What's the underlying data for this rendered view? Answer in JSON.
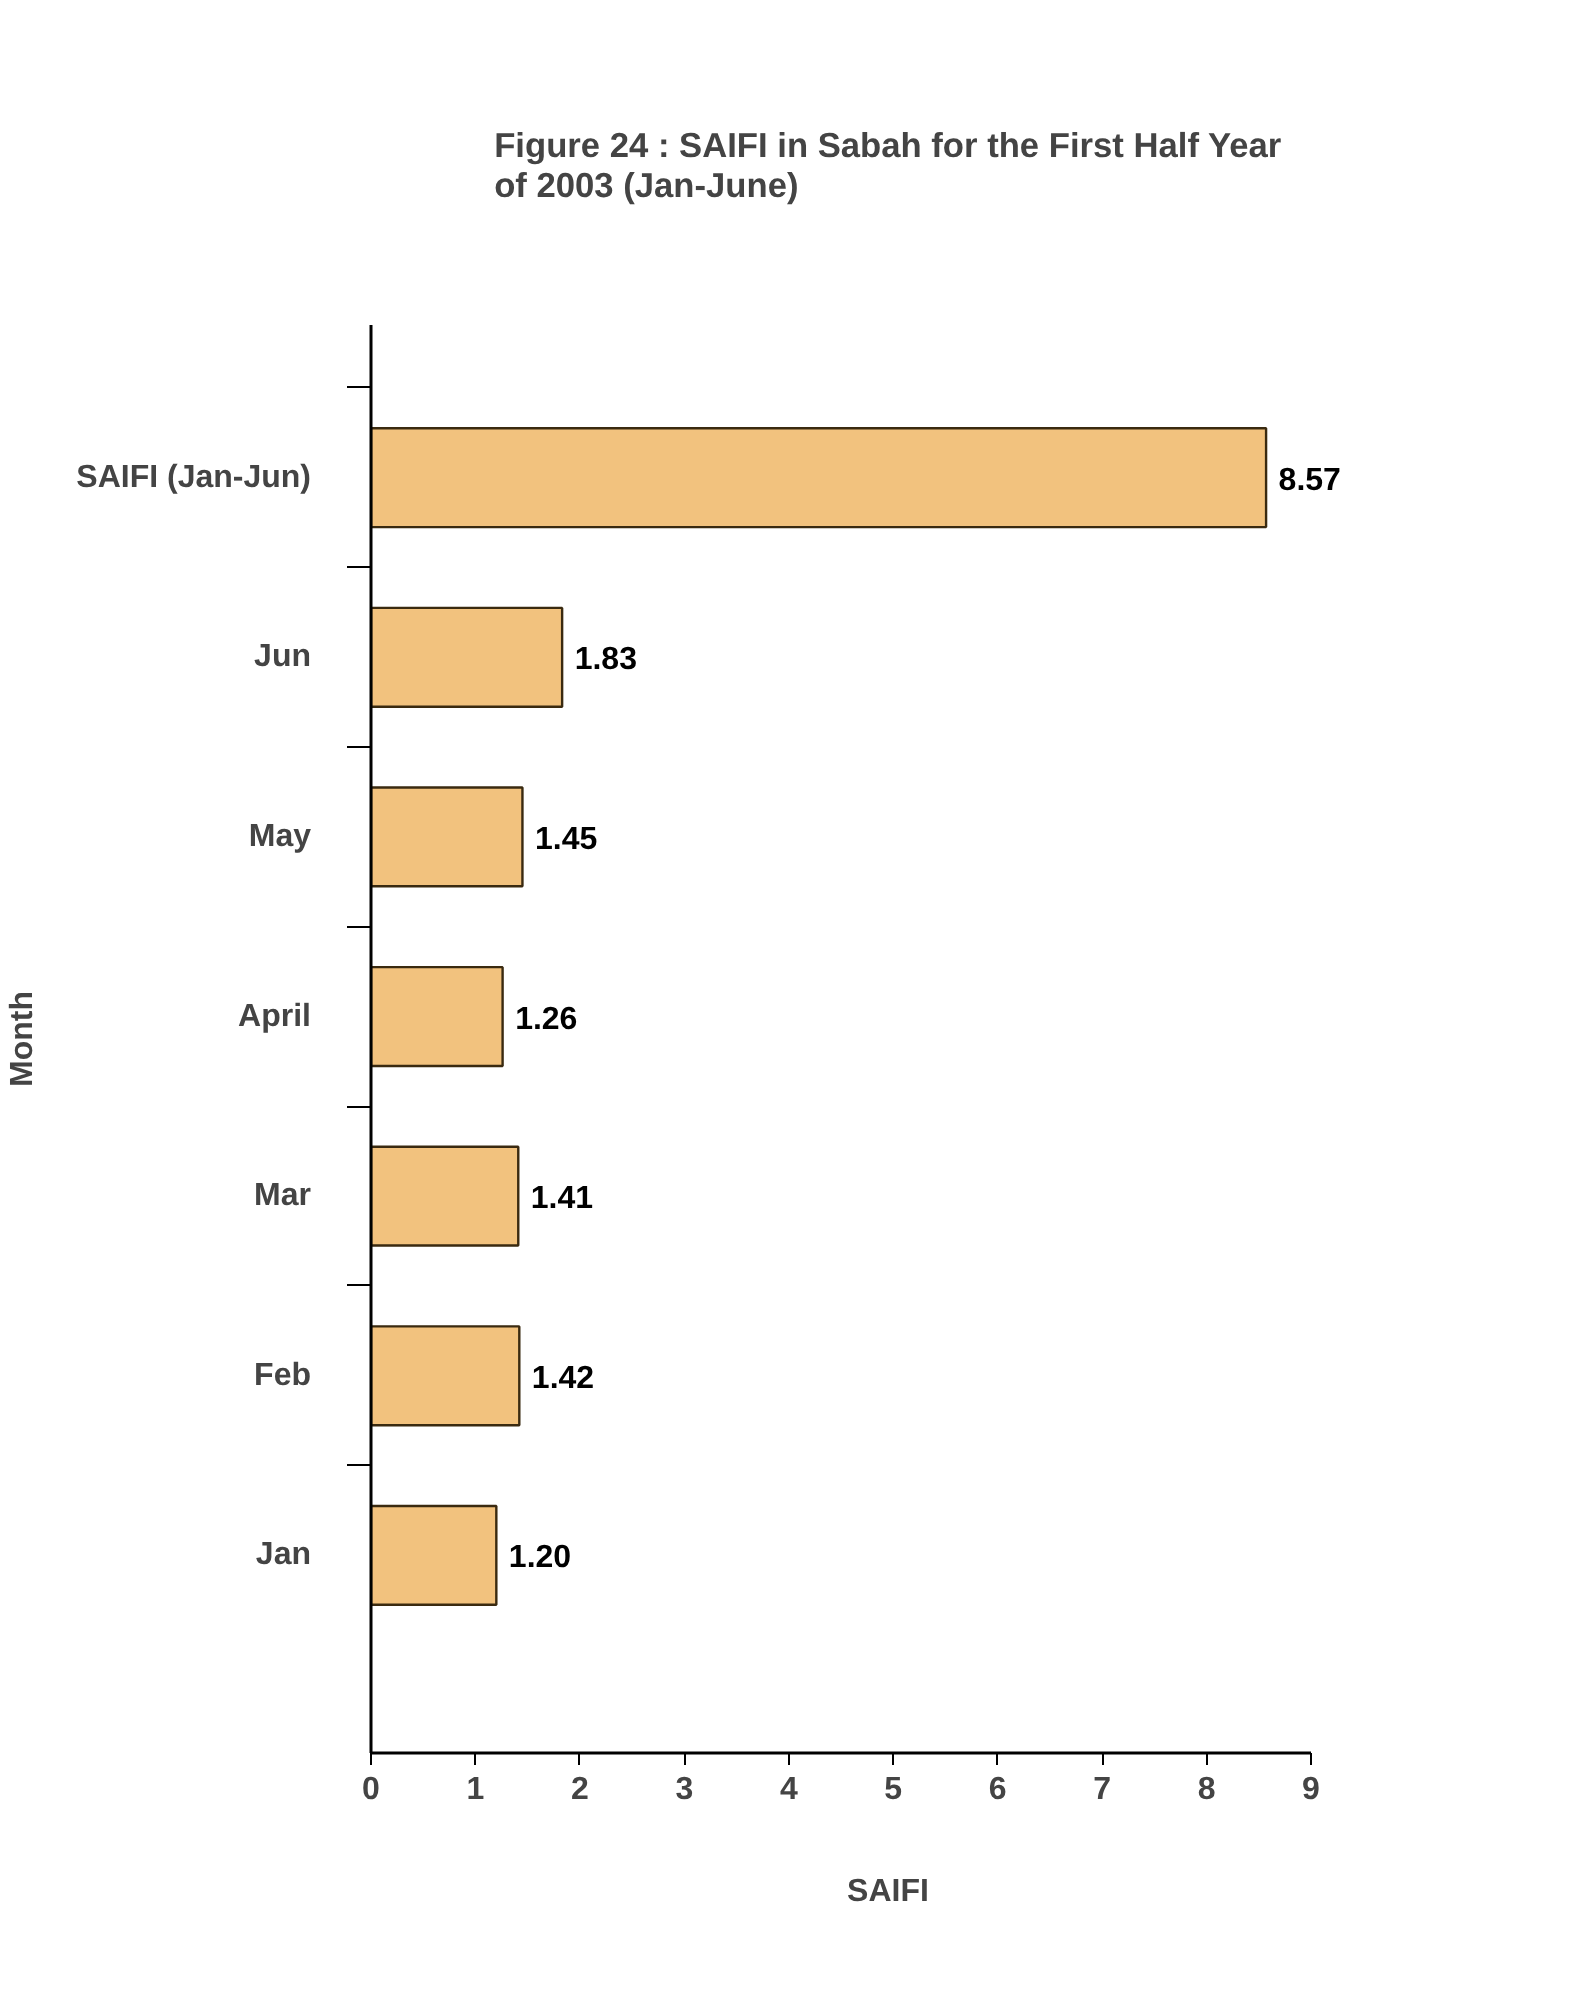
{
  "chart_data": {
    "type": "bar",
    "orientation": "horizontal",
    "title": "Figure 24 : SAIFI in Sabah for the First Half Year of 2003 (Jan-June)",
    "categories": [
      "SAIFI (Jan-Jun)",
      "Jun",
      "May",
      "April",
      "Mar",
      "Feb",
      "Jan"
    ],
    "values": [
      8.57,
      1.83,
      1.45,
      1.26,
      1.41,
      1.42,
      1.2
    ],
    "value_labels": [
      "8.57",
      "1.83",
      "1.45",
      "1.26",
      "1.41",
      "1.42",
      "1.20"
    ],
    "color": "#f2c27e",
    "xlabel": "SAIFI",
    "ylabel": "Month",
    "xlim": [
      0,
      9
    ],
    "xticks": [
      0,
      1,
      2,
      3,
      4,
      5,
      6,
      7,
      8,
      9
    ],
    "grid": false
  }
}
